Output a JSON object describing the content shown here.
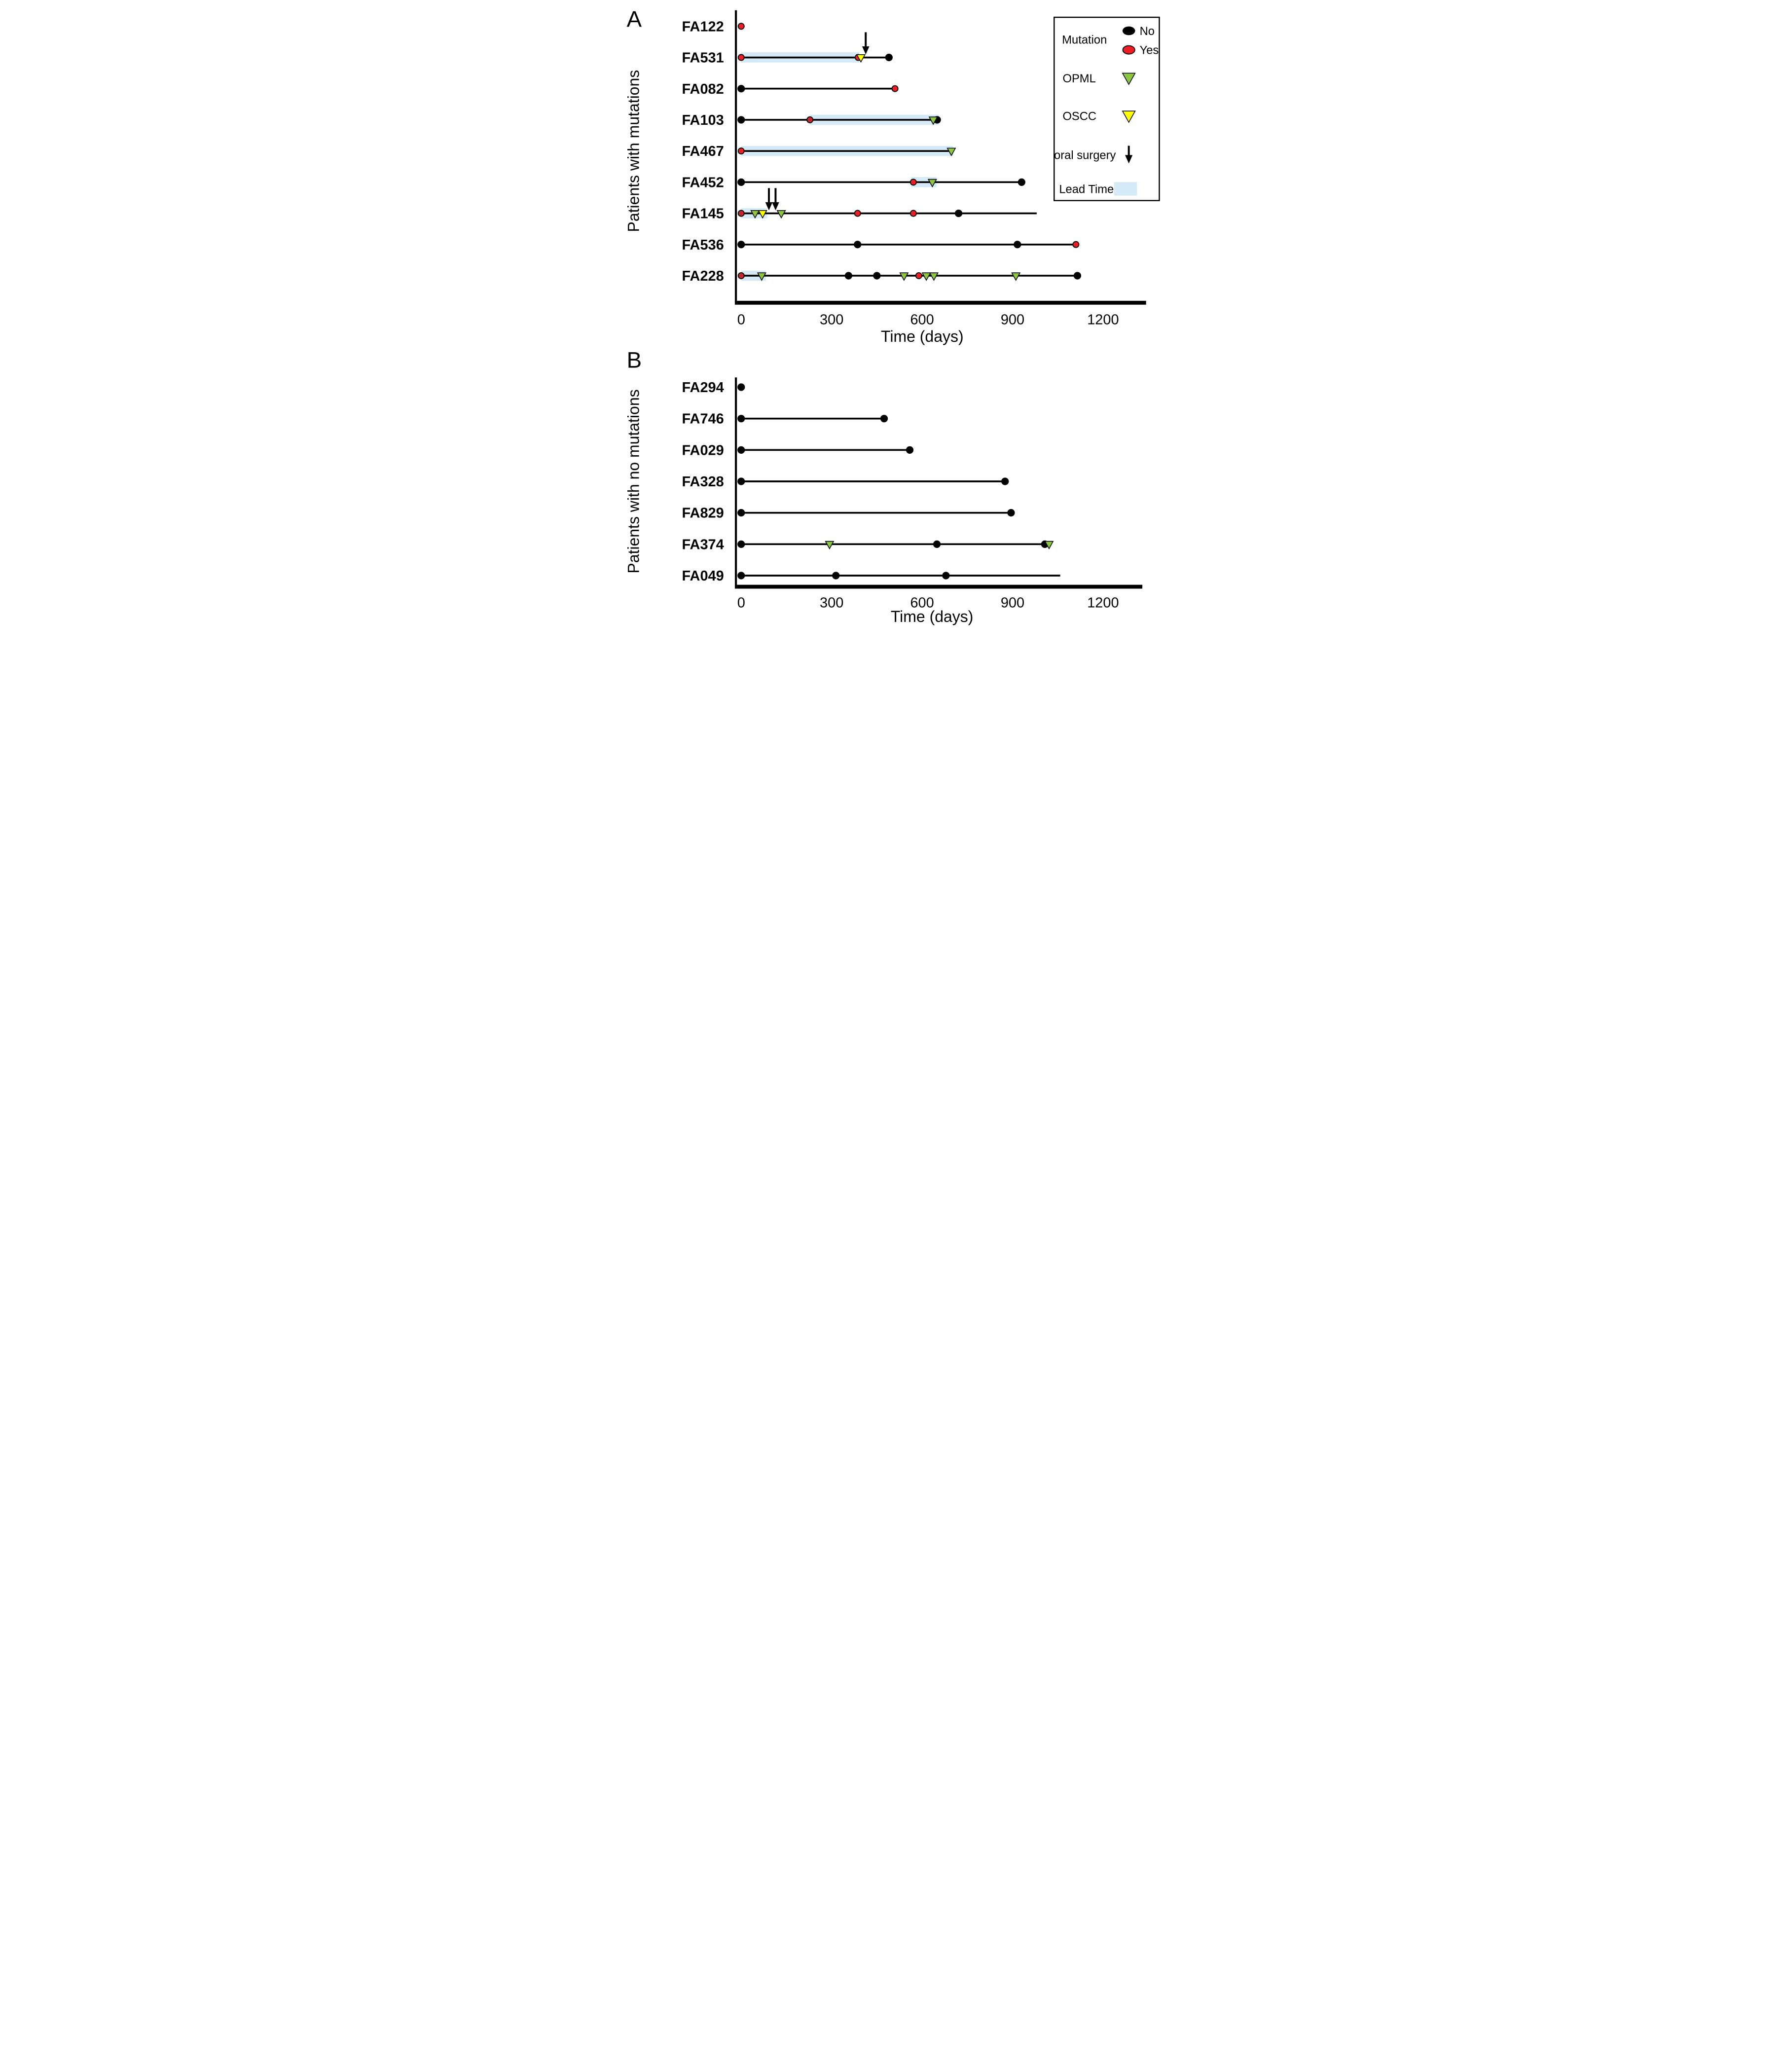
{
  "figure": {
    "panel_a_label": "A",
    "panel_b_label": "B"
  },
  "legend": {
    "mutation_label": "Mutation",
    "mutation_no": "No",
    "mutation_yes": "Yes",
    "opml_label": "OPML",
    "oscc_label": "OSCC",
    "oral_surgery_label": "oral surgery",
    "lead_time_label": "Lead Time"
  },
  "colors": {
    "mutation_no": "#000000",
    "mutation_yes": "#ee1c25",
    "mutation_yes_dark": "#c1272d",
    "opml": "#8cc63f",
    "oscc": "#ffff00",
    "lead_time": "#d4ebf7",
    "line": "#000000"
  },
  "chart_data": [
    {
      "type": "swimmer",
      "panel": "A",
      "title": "",
      "ylabel": "Patients with mutations",
      "xlabel": "Time (days)",
      "xlim": [
        0,
        1200
      ],
      "xticks": [
        0,
        300,
        600,
        900,
        1200
      ],
      "patients": [
        {
          "id": "FA122",
          "line_end": 0,
          "lead_time": null,
          "markers": [
            {
              "t": 0,
              "type": "mutation_yes"
            }
          ]
        },
        {
          "id": "FA531",
          "line_end": 490,
          "lead_time": [
            0,
            392
          ],
          "markers": [
            {
              "t": 0,
              "type": "mutation_yes"
            },
            {
              "t": 388,
              "type": "mutation_yes"
            },
            {
              "t": 397,
              "type": "oscc"
            },
            {
              "t": 413,
              "type": "surgery"
            },
            {
              "t": 490,
              "type": "mutation_no"
            }
          ]
        },
        {
          "id": "FA082",
          "line_end": 510,
          "lead_time": null,
          "markers": [
            {
              "t": 0,
              "type": "mutation_no"
            },
            {
              "t": 510,
              "type": "mutation_yes"
            }
          ]
        },
        {
          "id": "FA103",
          "line_end": 650,
          "lead_time": [
            228,
            655
          ],
          "markers": [
            {
              "t": 0,
              "type": "mutation_no"
            },
            {
              "t": 228,
              "type": "mutation_yes_dark"
            },
            {
              "t": 637,
              "type": "opml"
            },
            {
              "t": 650,
              "type": "mutation_no"
            }
          ]
        },
        {
          "id": "FA467",
          "line_end": 697,
          "lead_time": [
            0,
            703
          ],
          "markers": [
            {
              "t": 0,
              "type": "mutation_yes"
            },
            {
              "t": 697,
              "type": "opml"
            }
          ]
        },
        {
          "id": "FA452",
          "line_end": 930,
          "lead_time": [
            563,
            648
          ],
          "markers": [
            {
              "t": 0,
              "type": "mutation_no"
            },
            {
              "t": 571,
              "type": "mutation_yes"
            },
            {
              "t": 634,
              "type": "opml"
            },
            {
              "t": 930,
              "type": "mutation_no"
            }
          ]
        },
        {
          "id": "FA145",
          "line_end": 980,
          "lead_time": [
            0,
            86
          ],
          "markers": [
            {
              "t": 0,
              "type": "mutation_yes_dark"
            },
            {
              "t": 46,
              "type": "opml"
            },
            {
              "t": 71,
              "type": "oscc"
            },
            {
              "t": 92,
              "type": "surgery"
            },
            {
              "t": 114,
              "type": "surgery"
            },
            {
              "t": 133,
              "type": "opml"
            },
            {
              "t": 386,
              "type": "mutation_yes"
            },
            {
              "t": 571,
              "type": "mutation_yes"
            },
            {
              "t": 721,
              "type": "mutation_no"
            }
          ]
        },
        {
          "id": "FA536",
          "line_end": 1110,
          "lead_time": null,
          "markers": [
            {
              "t": 0,
              "type": "mutation_no"
            },
            {
              "t": 386,
              "type": "mutation_no"
            },
            {
              "t": 916,
              "type": "mutation_no"
            },
            {
              "t": 1110,
              "type": "mutation_yes"
            }
          ]
        },
        {
          "id": "FA228",
          "line_end": 1115,
          "lead_time": [
            0,
            82
          ],
          "markers": [
            {
              "t": 0,
              "type": "mutation_yes_dark"
            },
            {
              "t": 68,
              "type": "opml"
            },
            {
              "t": 356,
              "type": "mutation_no"
            },
            {
              "t": 450,
              "type": "mutation_no"
            },
            {
              "t": 540,
              "type": "opml"
            },
            {
              "t": 589,
              "type": "mutation_yes"
            },
            {
              "t": 614,
              "type": "opml"
            },
            {
              "t": 639,
              "type": "opml"
            },
            {
              "t": 911,
              "type": "opml"
            },
            {
              "t": 1115,
              "type": "mutation_no"
            }
          ]
        }
      ]
    },
    {
      "type": "swimmer",
      "panel": "B",
      "title": "",
      "ylabel": "Patients with no mutations",
      "xlabel": "Time (days)",
      "xlim": [
        0,
        1200
      ],
      "xticks": [
        0,
        300,
        600,
        900,
        1200
      ],
      "patients": [
        {
          "id": "FA294",
          "line_end": 0,
          "lead_time": null,
          "markers": [
            {
              "t": 0,
              "type": "mutation_no"
            }
          ]
        },
        {
          "id": "FA746",
          "line_end": 474,
          "lead_time": null,
          "markers": [
            {
              "t": 0,
              "type": "mutation_no"
            },
            {
              "t": 474,
              "type": "mutation_no"
            }
          ]
        },
        {
          "id": "FA029",
          "line_end": 559,
          "lead_time": null,
          "markers": [
            {
              "t": 0,
              "type": "mutation_no"
            },
            {
              "t": 559,
              "type": "mutation_no"
            }
          ]
        },
        {
          "id": "FA328",
          "line_end": 875,
          "lead_time": null,
          "markers": [
            {
              "t": 0,
              "type": "mutation_no"
            },
            {
              "t": 875,
              "type": "mutation_no"
            }
          ]
        },
        {
          "id": "FA829",
          "line_end": 895,
          "lead_time": null,
          "markers": [
            {
              "t": 0,
              "type": "mutation_no"
            },
            {
              "t": 895,
              "type": "mutation_no"
            }
          ]
        },
        {
          "id": "FA374",
          "line_end": 1020,
          "lead_time": null,
          "markers": [
            {
              "t": 0,
              "type": "mutation_no"
            },
            {
              "t": 293,
              "type": "opml"
            },
            {
              "t": 649,
              "type": "mutation_no"
            },
            {
              "t": 1007,
              "type": "mutation_no"
            },
            {
              "t": 1021,
              "type": "opml"
            }
          ]
        },
        {
          "id": "FA049",
          "line_end": 1058,
          "lead_time": null,
          "markers": [
            {
              "t": 0,
              "type": "mutation_no"
            },
            {
              "t": 314,
              "type": "mutation_no"
            },
            {
              "t": 679,
              "type": "mutation_no"
            }
          ]
        }
      ]
    }
  ]
}
